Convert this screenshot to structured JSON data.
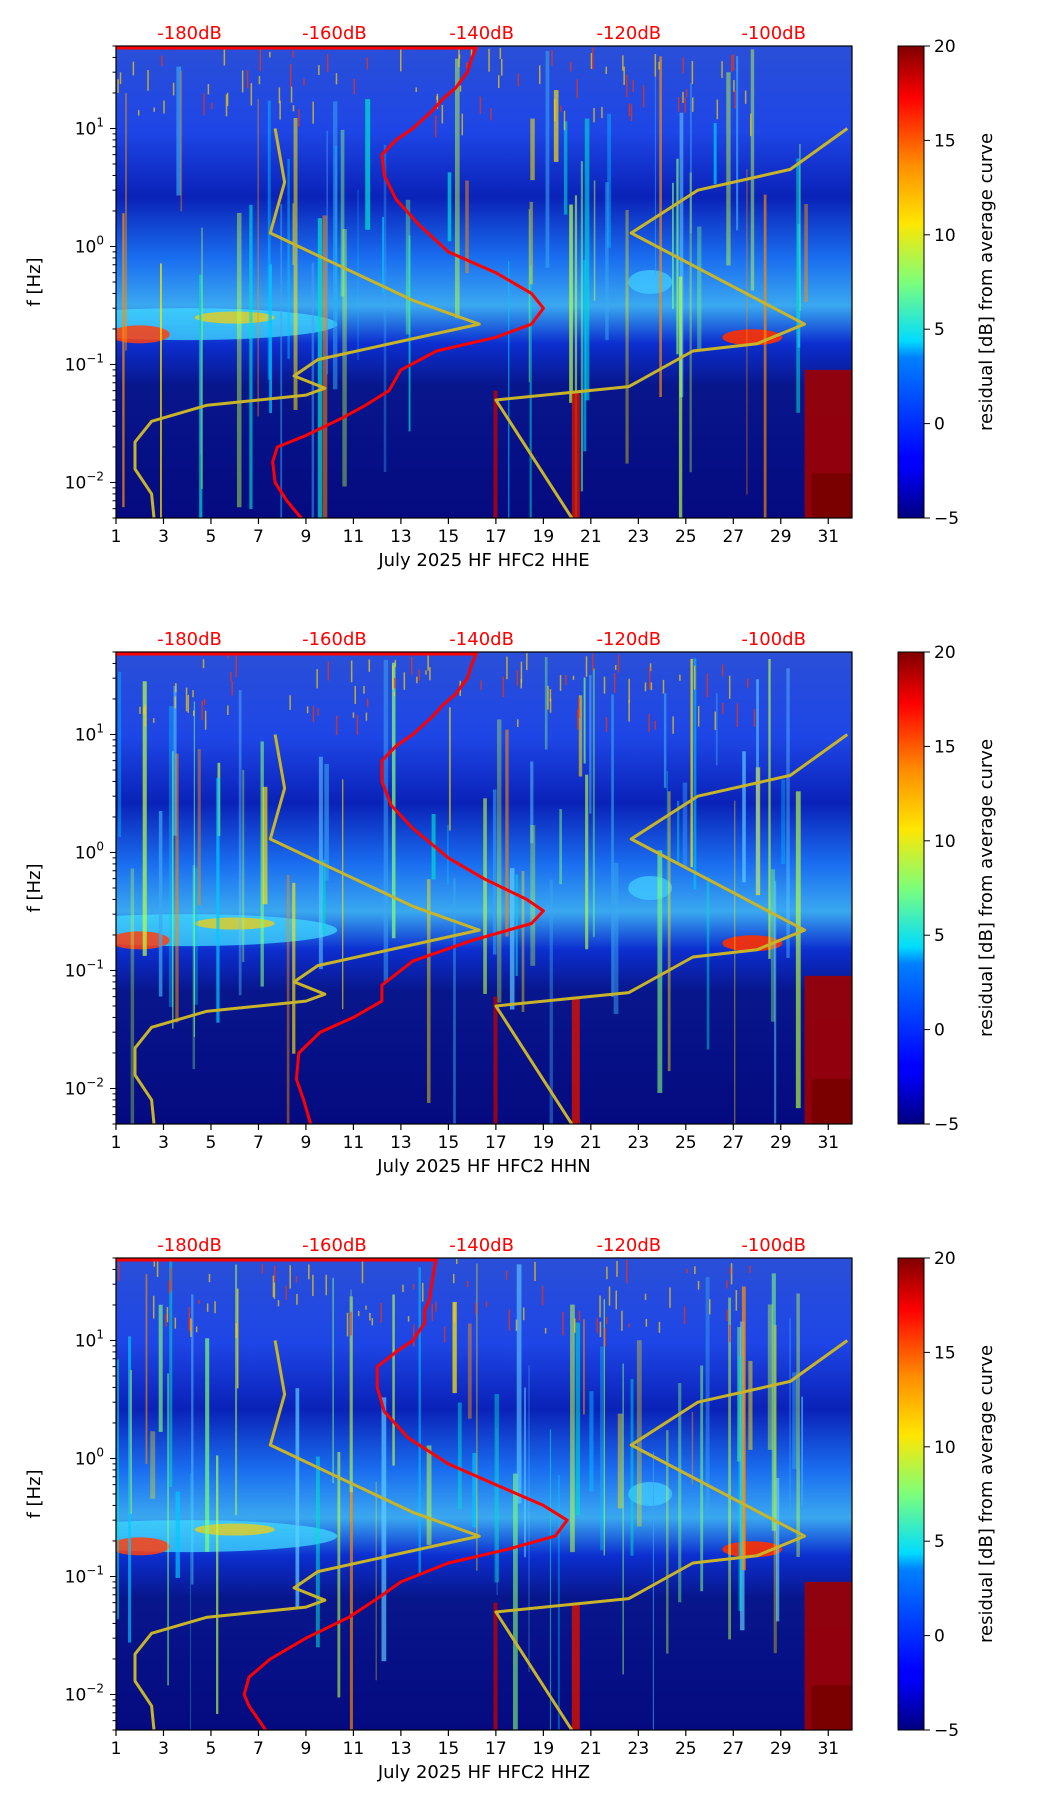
{
  "chart_data": [
    {
      "type": "heatmap",
      "title": "",
      "xlabel": "July 2025 HF HFC2  HHE",
      "ylabel": "f [Hz]",
      "x_ticks": [
        "1",
        "3",
        "5",
        "7",
        "9",
        "11",
        "13",
        "15",
        "17",
        "19",
        "21",
        "23",
        "25",
        "27",
        "29",
        "31"
      ],
      "x_range": [
        1,
        32
      ],
      "y_scale": "log",
      "y_range": [
        0.005,
        50
      ],
      "y_ticks": [
        {
          "value": 10,
          "base": "10",
          "exp": "1"
        },
        {
          "value": 1,
          "base": "10",
          "exp": "0"
        },
        {
          "value": 0.1,
          "base": "10",
          "exp": "−1"
        },
        {
          "value": 0.01,
          "base": "10",
          "exp": "−2"
        }
      ],
      "top_db_labels": [
        "-180dB",
        "-160dB",
        "-140dB",
        "-120dB",
        "-100dB"
      ],
      "db_label_color": "#ff0000",
      "colorbar": {
        "label": "residual [dB] from average curve",
        "min": -5,
        "max": 20,
        "ticks": [
          "20",
          "15",
          "10",
          "5",
          "0",
          "−5"
        ],
        "colormap": "jet"
      },
      "series": [
        {
          "name": "red curve",
          "color": "#ff0000",
          "points": [
            [
              8.8,
              0.005
            ],
            [
              8.2,
              0.007
            ],
            [
              7.7,
              0.01
            ],
            [
              7.6,
              0.015
            ],
            [
              7.8,
              0.02
            ],
            [
              9,
              0.025
            ],
            [
              10.5,
              0.035
            ],
            [
              11.5,
              0.045
            ],
            [
              12.5,
              0.06
            ],
            [
              13,
              0.09
            ],
            [
              14.5,
              0.13
            ],
            [
              17,
              0.17
            ],
            [
              18.5,
              0.22
            ],
            [
              19,
              0.3
            ],
            [
              18.5,
              0.4
            ],
            [
              17,
              0.6
            ],
            [
              15,
              0.9
            ],
            [
              13.8,
              1.5
            ],
            [
              12.8,
              2.5
            ],
            [
              12.3,
              4
            ],
            [
              12.2,
              6
            ],
            [
              12.8,
              8
            ],
            [
              13.5,
              10
            ],
            [
              14.3,
              14
            ],
            [
              14.8,
              18
            ],
            [
              15.3,
              22
            ],
            [
              15.8,
              30
            ],
            [
              16,
              40
            ],
            [
              16.2,
              50
            ]
          ]
        },
        {
          "name": "yellow curve left",
          "color": "#c8b428",
          "points": [
            [
              2.6,
              0.005
            ],
            [
              2.5,
              0.008
            ],
            [
              1.8,
              0.013
            ],
            [
              1.8,
              0.022
            ],
            [
              2.5,
              0.033
            ],
            [
              4.8,
              0.045
            ],
            [
              9,
              0.055
            ],
            [
              9.8,
              0.063
            ],
            [
              8.5,
              0.08
            ],
            [
              9.5,
              0.11
            ],
            [
              16.3,
              0.22
            ],
            [
              13.5,
              0.35
            ],
            [
              10,
              0.75
            ],
            [
              7.5,
              1.3
            ],
            [
              8.1,
              3.5
            ],
            [
              7.7,
              10
            ]
          ]
        },
        {
          "name": "yellow curve right",
          "color": "#c8b428",
          "points": [
            [
              20.2,
              0.005
            ],
            [
              17,
              0.05
            ],
            [
              22.6,
              0.065
            ],
            [
              25.3,
              0.13
            ],
            [
              28,
              0.15
            ],
            [
              30,
              0.22
            ],
            [
              22.7,
              1.3
            ],
            [
              25.5,
              3
            ],
            [
              29.4,
              4.5
            ],
            [
              31.8,
              10
            ]
          ]
        }
      ]
    },
    {
      "type": "heatmap",
      "title": "",
      "xlabel": "July 2025 HF HFC2  HHN",
      "ylabel": "f [Hz]",
      "x_ticks": [
        "1",
        "3",
        "5",
        "7",
        "9",
        "11",
        "13",
        "15",
        "17",
        "19",
        "21",
        "23",
        "25",
        "27",
        "29",
        "31"
      ],
      "x_range": [
        1,
        32
      ],
      "y_scale": "log",
      "y_range": [
        0.005,
        50
      ],
      "y_ticks": [
        {
          "value": 10,
          "base": "10",
          "exp": "1"
        },
        {
          "value": 1,
          "base": "10",
          "exp": "0"
        },
        {
          "value": 0.1,
          "base": "10",
          "exp": "−1"
        },
        {
          "value": 0.01,
          "base": "10",
          "exp": "−2"
        }
      ],
      "top_db_labels": [
        "-180dB",
        "-160dB",
        "-140dB",
        "-120dB",
        "-100dB"
      ],
      "db_label_color": "#ff0000",
      "colorbar": {
        "label": "residual [dB] from average curve",
        "min": -5,
        "max": 20,
        "ticks": [
          "20",
          "15",
          "10",
          "5",
          "0",
          "−5"
        ],
        "colormap": "jet"
      },
      "series": [
        {
          "name": "red curve",
          "color": "#ff0000",
          "points": [
            [
              9.2,
              0.005
            ],
            [
              8.9,
              0.008
            ],
            [
              8.6,
              0.012
            ],
            [
              8.7,
              0.02
            ],
            [
              9.6,
              0.03
            ],
            [
              11,
              0.04
            ],
            [
              12.2,
              0.055
            ],
            [
              12.2,
              0.075
            ],
            [
              13.5,
              0.12
            ],
            [
              16,
              0.18
            ],
            [
              18.5,
              0.25
            ],
            [
              19,
              0.32
            ],
            [
              18.3,
              0.4
            ],
            [
              16.5,
              0.6
            ],
            [
              15,
              0.9
            ],
            [
              13.5,
              1.6
            ],
            [
              12.6,
              2.5
            ],
            [
              12.2,
              4
            ],
            [
              12.2,
              6
            ],
            [
              12.8,
              8
            ],
            [
              13.5,
              10
            ],
            [
              14.3,
              14
            ],
            [
              14.8,
              18
            ],
            [
              15.3,
              22
            ],
            [
              15.8,
              30
            ],
            [
              16,
              40
            ],
            [
              16.2,
              50
            ]
          ]
        },
        {
          "name": "yellow curve left",
          "color": "#c8b428",
          "points": [
            [
              2.6,
              0.005
            ],
            [
              2.5,
              0.008
            ],
            [
              1.8,
              0.013
            ],
            [
              1.8,
              0.022
            ],
            [
              2.5,
              0.033
            ],
            [
              4.8,
              0.045
            ],
            [
              9,
              0.055
            ],
            [
              9.8,
              0.063
            ],
            [
              8.5,
              0.08
            ],
            [
              9.5,
              0.11
            ],
            [
              16.3,
              0.22
            ],
            [
              13.5,
              0.35
            ],
            [
              10,
              0.75
            ],
            [
              7.5,
              1.3
            ],
            [
              8.1,
              3.5
            ],
            [
              7.7,
              10
            ]
          ]
        },
        {
          "name": "yellow curve right",
          "color": "#c8b428",
          "points": [
            [
              20.2,
              0.005
            ],
            [
              17,
              0.05
            ],
            [
              22.6,
              0.065
            ],
            [
              25.3,
              0.13
            ],
            [
              28,
              0.15
            ],
            [
              30,
              0.22
            ],
            [
              22.7,
              1.3
            ],
            [
              25.5,
              3
            ],
            [
              29.4,
              4.5
            ],
            [
              31.8,
              10
            ]
          ]
        }
      ]
    },
    {
      "type": "heatmap",
      "title": "",
      "xlabel": "July 2025 HF HFC2  HHZ",
      "ylabel": "f [Hz]",
      "x_ticks": [
        "1",
        "3",
        "5",
        "7",
        "9",
        "11",
        "13",
        "15",
        "17",
        "19",
        "21",
        "23",
        "25",
        "27",
        "29",
        "31"
      ],
      "x_range": [
        1,
        32
      ],
      "y_scale": "log",
      "y_range": [
        0.005,
        50
      ],
      "y_ticks": [
        {
          "value": 10,
          "base": "10",
          "exp": "1"
        },
        {
          "value": 1,
          "base": "10",
          "exp": "0"
        },
        {
          "value": 0.1,
          "base": "10",
          "exp": "−1"
        },
        {
          "value": 0.01,
          "base": "10",
          "exp": "−2"
        }
      ],
      "top_db_labels": [
        "-180dB",
        "-160dB",
        "-140dB",
        "-120dB",
        "-100dB"
      ],
      "db_label_color": "#ff0000",
      "colorbar": {
        "label": "residual [dB] from average curve",
        "min": -5,
        "max": 20,
        "ticks": [
          "20",
          "15",
          "10",
          "5",
          "0",
          "−5"
        ],
        "colormap": "jet"
      },
      "series": [
        {
          "name": "red curve",
          "color": "#ff0000",
          "points": [
            [
              7.3,
              0.005
            ],
            [
              6.6,
              0.008
            ],
            [
              6.4,
              0.01
            ],
            [
              6.6,
              0.014
            ],
            [
              7.5,
              0.02
            ],
            [
              9,
              0.03
            ],
            [
              10.8,
              0.045
            ],
            [
              12,
              0.065
            ],
            [
              13,
              0.09
            ],
            [
              15,
              0.13
            ],
            [
              17.5,
              0.17
            ],
            [
              19.5,
              0.22
            ],
            [
              20,
              0.3
            ],
            [
              19,
              0.4
            ],
            [
              17,
              0.6
            ],
            [
              15,
              0.9
            ],
            [
              13.3,
              1.5
            ],
            [
              12.3,
              2.5
            ],
            [
              12,
              4
            ],
            [
              12,
              6
            ],
            [
              12.8,
              8
            ],
            [
              13.5,
              10
            ],
            [
              14,
              14
            ],
            [
              14,
              18
            ],
            [
              14.2,
              22
            ],
            [
              14.3,
              30
            ],
            [
              14.4,
              40
            ],
            [
              14.5,
              50
            ]
          ]
        },
        {
          "name": "yellow curve left",
          "color": "#c8b428",
          "points": [
            [
              2.6,
              0.005
            ],
            [
              2.5,
              0.008
            ],
            [
              1.8,
              0.013
            ],
            [
              1.8,
              0.022
            ],
            [
              2.5,
              0.033
            ],
            [
              4.8,
              0.045
            ],
            [
              9,
              0.055
            ],
            [
              9.8,
              0.063
            ],
            [
              8.5,
              0.08
            ],
            [
              9.5,
              0.11
            ],
            [
              16.3,
              0.22
            ],
            [
              13.5,
              0.35
            ],
            [
              10,
              0.75
            ],
            [
              7.5,
              1.3
            ],
            [
              8.1,
              3.5
            ],
            [
              7.7,
              10
            ]
          ]
        },
        {
          "name": "yellow curve right",
          "color": "#c8b428",
          "points": [
            [
              20.2,
              0.005
            ],
            [
              17,
              0.05
            ],
            [
              22.6,
              0.065
            ],
            [
              25.3,
              0.13
            ],
            [
              28,
              0.15
            ],
            [
              30,
              0.22
            ],
            [
              22.7,
              1.3
            ],
            [
              25.5,
              3
            ],
            [
              29.4,
              4.5
            ],
            [
              31.8,
              10
            ]
          ]
        }
      ]
    }
  ]
}
